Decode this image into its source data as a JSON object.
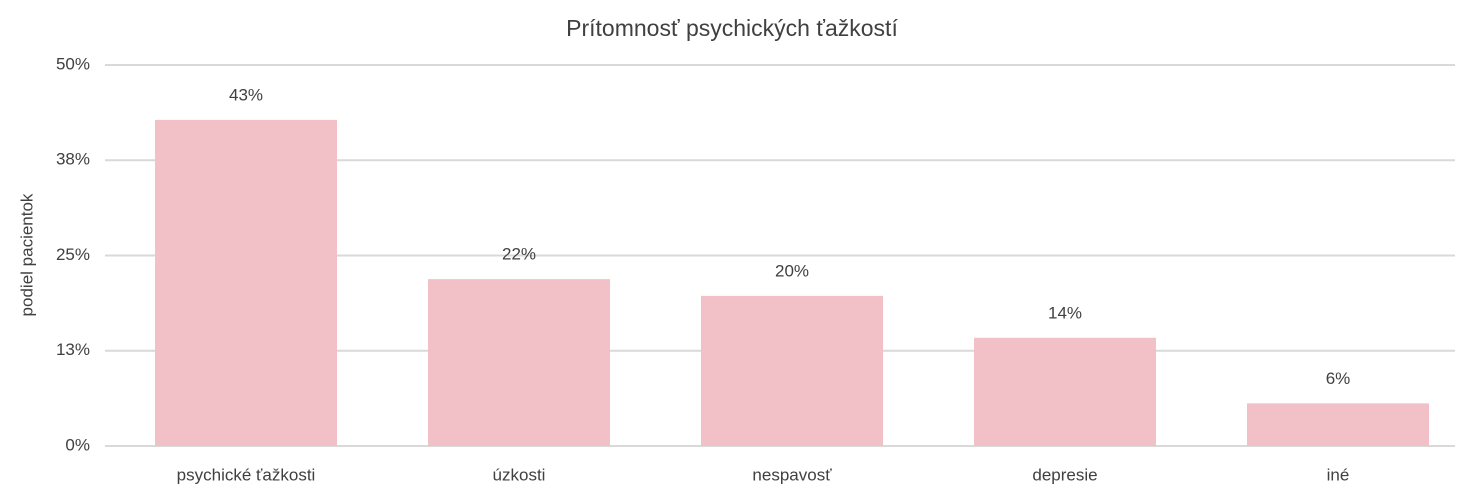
{
  "chart_data": {
    "type": "bar",
    "title": "Prítomnosť psychických ťažkostí",
    "y_label": "podiel pacientok",
    "categories": [
      "psychické ťažkosti",
      "úzkosti",
      "nespavosť",
      "depresie",
      "iné"
    ],
    "values": [
      42.8,
      21.9,
      19.7,
      14.2,
      5.6
    ],
    "value_labels": [
      "43%",
      "22%",
      "20%",
      "14%",
      "6%"
    ],
    "color": "#f2c1c8",
    "ylim": [
      0,
      50
    ],
    "yticks": [
      {
        "value": 0,
        "label": "0%"
      },
      {
        "value": 12.5,
        "label": "13%"
      },
      {
        "value": 25,
        "label": "25%"
      },
      {
        "value": 37.5,
        "label": "38%"
      },
      {
        "value": 50,
        "label": "50%"
      }
    ],
    "grid": true
  }
}
